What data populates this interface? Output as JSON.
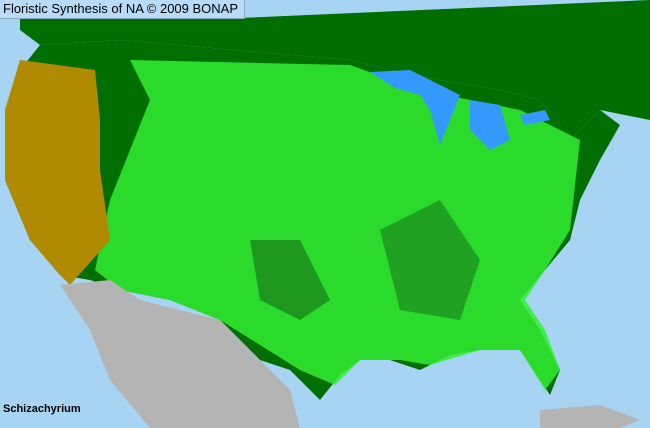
{
  "header": {
    "title": "Floristic Synthesis of NA © 2009 BONAP"
  },
  "taxon": "Schizachyrium",
  "colors": {
    "ocean": "#a8d4f4",
    "lakes": "#3399ff",
    "present_state": "#006e00",
    "present_county": "#33ee33",
    "native_absent_state": "#b08a00",
    "no_data": "#b4b4b4"
  }
}
